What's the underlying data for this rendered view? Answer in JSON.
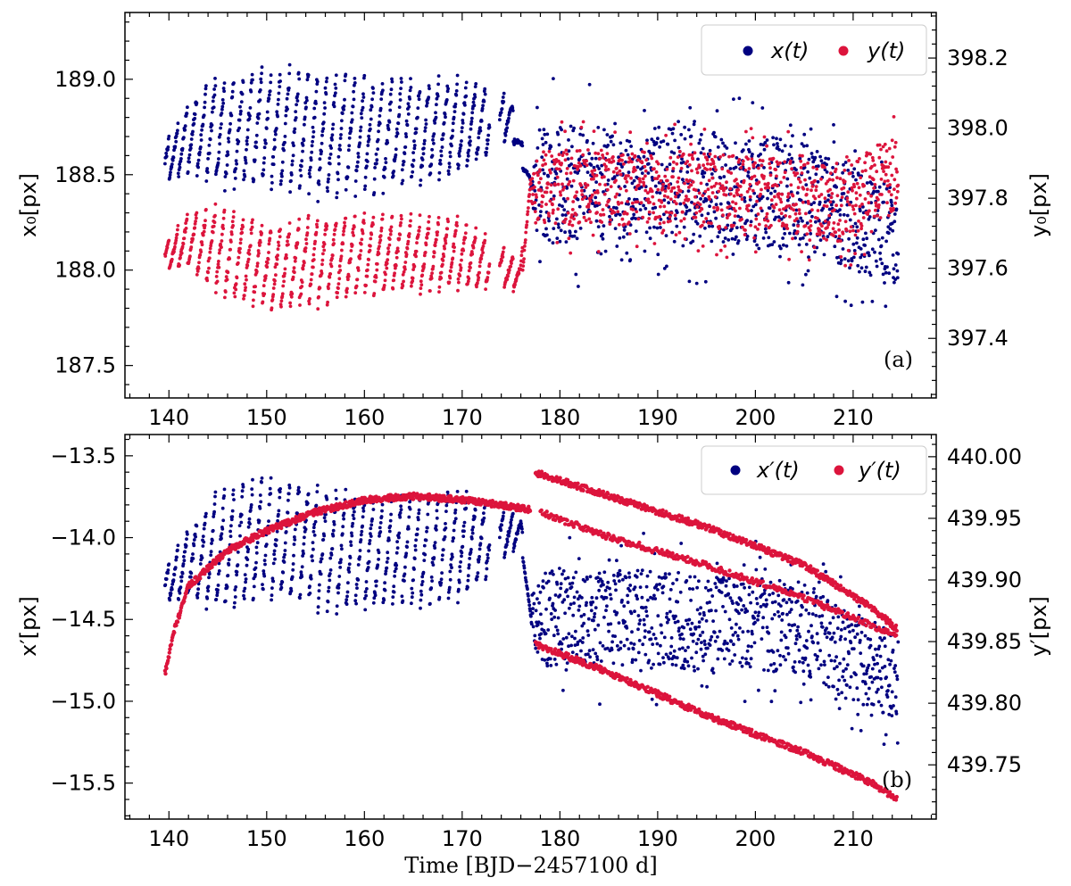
{
  "chart_data": [
    {
      "type": "scatter",
      "panel_label": "(a)",
      "xlabel": "",
      "ylabel_left": "x₀[px]",
      "ylabel_right": "y₀[px]",
      "xlim": [
        135.5,
        218.5
      ],
      "ylim_left": [
        187.33,
        189.35
      ],
      "ylim_right": [
        397.23,
        398.33
      ],
      "x_ticks": [
        140,
        150,
        160,
        170,
        180,
        190,
        200,
        210
      ],
      "y_left_ticks": [
        187.5,
        188.0,
        188.5,
        189.0
      ],
      "y_right_ticks": [
        397.4,
        397.6,
        397.8,
        398.0,
        398.2
      ],
      "legend": {
        "location": "top-right"
      },
      "series": [
        {
          "name": "x(t)",
          "axis": "left",
          "color": "#000080",
          "trend": [
            [
              139.6,
              188.55
            ],
            [
              142,
              188.7
            ],
            [
              150,
              188.75
            ],
            [
              160,
              188.7
            ],
            [
              170,
              188.75
            ],
            [
              175,
              188.8
            ],
            [
              177,
              188.45
            ],
            [
              190,
              188.45
            ],
            [
              205,
              188.4
            ],
            [
              214.5,
              188.15
            ]
          ],
          "amplitude": [
            [
              139.6,
              0.12
            ],
            [
              145,
              0.35
            ],
            [
              155,
              0.4
            ],
            [
              170,
              0.3
            ],
            [
              177,
              0.05
            ],
            [
              178,
              0.35
            ],
            [
              214.5,
              0.3
            ]
          ],
          "gaps": [
            [
              172.8,
              173.8
            ]
          ]
        },
        {
          "name": "y(t)",
          "axis": "right",
          "color": "#dc143c",
          "trend": [
            [
              139.6,
              397.63
            ],
            [
              142,
              397.68
            ],
            [
              150,
              397.6
            ],
            [
              160,
              397.64
            ],
            [
              170,
              397.64
            ],
            [
              176,
              397.58
            ],
            [
              177,
              397.83
            ],
            [
              190,
              397.83
            ],
            [
              205,
              397.8
            ],
            [
              209,
              397.78
            ],
            [
              214.5,
              397.88
            ]
          ],
          "amplitude": [
            [
              139.6,
              0.05
            ],
            [
              145,
              0.15
            ],
            [
              155,
              0.15
            ],
            [
              170,
              0.12
            ],
            [
              177,
              0.04
            ],
            [
              178,
              0.12
            ],
            [
              214.5,
              0.12
            ]
          ],
          "gaps": [
            [
              172.8,
              173.8
            ]
          ]
        }
      ]
    },
    {
      "type": "scatter",
      "panel_label": "(b)",
      "xlabel": "Time [BJD−2457100 d]",
      "ylabel_left": "x′[px]",
      "ylabel_right": "y′[px]",
      "xlim": [
        135.5,
        218.5
      ],
      "ylim_left": [
        -15.72,
        -13.37
      ],
      "ylim_right": [
        439.706,
        440.018
      ],
      "x_ticks": [
        140,
        150,
        160,
        170,
        180,
        190,
        200,
        210
      ],
      "y_left_ticks": [
        -15.5,
        -15.0,
        -14.5,
        -14.0,
        -13.5
      ],
      "y_right_ticks": [
        439.75,
        439.8,
        439.85,
        439.9,
        439.95,
        440.0
      ],
      "legend": {
        "location": "top-right"
      },
      "series": [
        {
          "name": "x′(t)",
          "axis": "left",
          "color": "#000080",
          "trend": [
            [
              139.6,
              -14.3
            ],
            [
              142,
              -14.15
            ],
            [
              150,
              -14.0
            ],
            [
              160,
              -14.1
            ],
            [
              170,
              -14.05
            ],
            [
              176,
              -13.95
            ],
            [
              177,
              -14.5
            ],
            [
              190,
              -14.5
            ],
            [
              205,
              -14.55
            ],
            [
              209,
              -14.7
            ],
            [
              214.5,
              -14.85
            ]
          ],
          "amplitude": [
            [
              139.6,
              0.12
            ],
            [
              145,
              0.45
            ],
            [
              155,
              0.45
            ],
            [
              170,
              0.4
            ],
            [
              177,
              0.05
            ],
            [
              178,
              0.35
            ],
            [
              214.5,
              0.3
            ]
          ],
          "gaps": [
            [
              172.8,
              173.8
            ]
          ]
        },
        {
          "name": "y′(t)",
          "axis": "right",
          "color": "#dc143c",
          "tracks": [
            [
              [
                139.6,
                439.824
              ],
              [
                140.5,
                439.858
              ],
              [
                142,
                439.895
              ],
              [
                146,
                439.924
              ],
              [
                150,
                439.94
              ],
              [
                155,
                439.955
              ],
              [
                160,
                439.965
              ],
              [
                165,
                439.968
              ],
              [
                170,
                439.965
              ],
              [
                173,
                439.962
              ],
              [
                177,
                439.957
              ]
            ],
            [
              [
                177.5,
                439.987
              ],
              [
                185,
                439.968
              ],
              [
                195,
                439.943
              ],
              [
                205,
                439.912
              ],
              [
                212,
                439.877
              ],
              [
                214.5,
                439.86
              ]
            ],
            [
              [
                177.5,
                439.848
              ],
              [
                185,
                439.825
              ],
              [
                195,
                439.79
              ],
              [
                205,
                439.76
              ],
              [
                212,
                439.735
              ],
              [
                214.5,
                439.722
              ]
            ],
            [
              [
                178,
                439.955
              ],
              [
                185,
                439.935
              ],
              [
                195,
                439.912
              ],
              [
                205,
                439.885
              ],
              [
                214.5,
                439.855
              ]
            ]
          ]
        }
      ]
    }
  ]
}
